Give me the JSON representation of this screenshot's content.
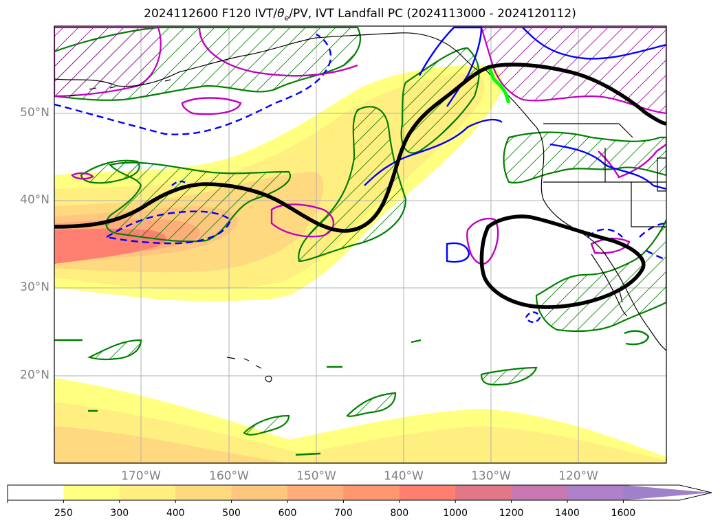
{
  "title": {
    "prefix": "2024112600 F120 IVT/",
    "theta": "θ",
    "theta_sub": "e",
    "suffix": "/PV, IVT Landfall PC (2024113000 - 2024120112)"
  },
  "map": {
    "lat_labels": [
      "50°N",
      "40°N",
      "30°N",
      "20°N"
    ],
    "lon_labels": [
      "170°W",
      "160°W",
      "150°W",
      "140°W",
      "130°W",
      "120°W"
    ]
  },
  "colorbar": {
    "ticks": [
      "250",
      "300",
      "400",
      "500",
      "600",
      "700",
      "800",
      "1000",
      "1200",
      "1400",
      "1600"
    ],
    "colors": [
      "#ffffff",
      "#ffff80",
      "#ffee80",
      "#ffd980",
      "#ffc680",
      "#ffad7a",
      "#ff9870",
      "#ff8070",
      "#e07888",
      "#c878b0",
      "#b080c8",
      "#a080c8"
    ],
    "extend": "max"
  },
  "colors": {
    "ivt_path": "#000000",
    "pv_contour": "#008000",
    "theta_positive": "#c000c0",
    "theta_negative": "#0000ff",
    "landfall": "#00ff00",
    "coast": "#000000",
    "grid": "#b0b0b0"
  }
}
